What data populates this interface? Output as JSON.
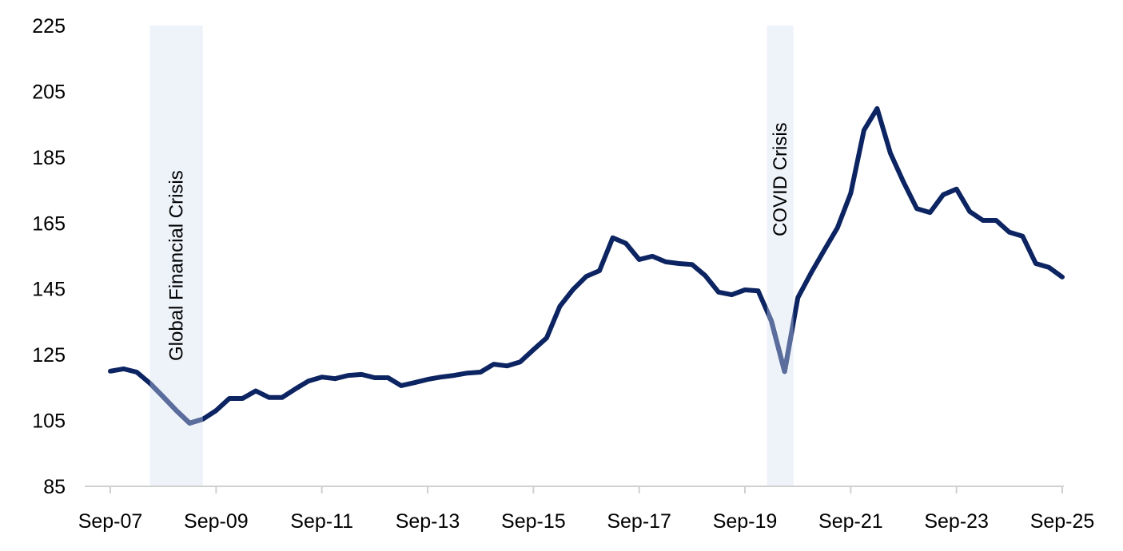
{
  "chart_data": {
    "type": "line",
    "title": "",
    "xlabel": "",
    "ylabel": "",
    "ylim": [
      85,
      225
    ],
    "yticks": [
      "85",
      "105",
      "125",
      "145",
      "165",
      "185",
      "205",
      "225"
    ],
    "xticks": [
      "Sep-07",
      "Sep-09",
      "Sep-11",
      "Sep-13",
      "Sep-15",
      "Sep-17",
      "Sep-19",
      "Sep-21",
      "Sep-23",
      "Sep-25"
    ],
    "grid": false,
    "colors": {
      "line": "#0c2461",
      "line_in_crisis": "#5a6d9c",
      "band": "#eef2f9",
      "axis": "#d0d0d0"
    },
    "x": [
      "Sep-07",
      "Dec-07",
      "Mar-08",
      "Jun-08",
      "Sep-08",
      "Dec-08",
      "Mar-09",
      "Jun-09",
      "Sep-09",
      "Dec-09",
      "Mar-10",
      "Jun-10",
      "Sep-10",
      "Dec-10",
      "Mar-11",
      "Jun-11",
      "Sep-11",
      "Dec-11",
      "Mar-12",
      "Jun-12",
      "Sep-12",
      "Dec-12",
      "Mar-13",
      "Jun-13",
      "Sep-13",
      "Dec-13",
      "Mar-14",
      "Jun-14",
      "Sep-14",
      "Dec-14",
      "Mar-15",
      "Jun-15",
      "Sep-15",
      "Dec-15",
      "Mar-16",
      "Jun-16",
      "Sep-16",
      "Dec-16",
      "Mar-17",
      "Jun-17",
      "Sep-17",
      "Dec-17",
      "Mar-18",
      "Jun-18",
      "Sep-18",
      "Dec-18",
      "Mar-19",
      "Jun-19",
      "Sep-19",
      "Dec-19",
      "Mar-20",
      "Jun-20",
      "Sep-20",
      "Dec-20",
      "Mar-21",
      "Jun-21",
      "Sep-21",
      "Dec-21",
      "Mar-22",
      "Jun-22",
      "Sep-22",
      "Dec-22",
      "Mar-23",
      "Jun-23",
      "Sep-23",
      "Dec-23",
      "Mar-24",
      "Jun-24",
      "Sep-24",
      "Dec-24",
      "Mar-25",
      "Jun-25",
      "Sep-25"
    ],
    "values": [
      120,
      120.7,
      119.7,
      116.3,
      112.2,
      108,
      104.2,
      105.4,
      108,
      111.7,
      111.7,
      114,
      112,
      112,
      114.6,
      117,
      118.2,
      117.7,
      118.7,
      119,
      118,
      118,
      115.6,
      116.5,
      117.5,
      118.2,
      118.7,
      119.4,
      119.7,
      122.1,
      121.6,
      122.8,
      126.5,
      130.1,
      139.7,
      144.8,
      148.8,
      150.5,
      160.5,
      158.8,
      153.9,
      154.9,
      153.2,
      152.7,
      152.4,
      149,
      144,
      143.2,
      144.7,
      144.4,
      135.2,
      119.9,
      142.3,
      149.8,
      156.8,
      163.6,
      174,
      193.2,
      199.8,
      186.2,
      177.4,
      169.4,
      168.2,
      173.6,
      175.3,
      168.5,
      165.8,
      165.8,
      162.2,
      161,
      152.7,
      151.5,
      148.6
    ],
    "shaded_periods": [
      {
        "label": "Global Financial Crisis",
        "start": "Jun-08",
        "end": "Jun-09"
      },
      {
        "label": "COVID Crisis",
        "start": "Feb-20",
        "end": "Aug-20"
      }
    ]
  }
}
